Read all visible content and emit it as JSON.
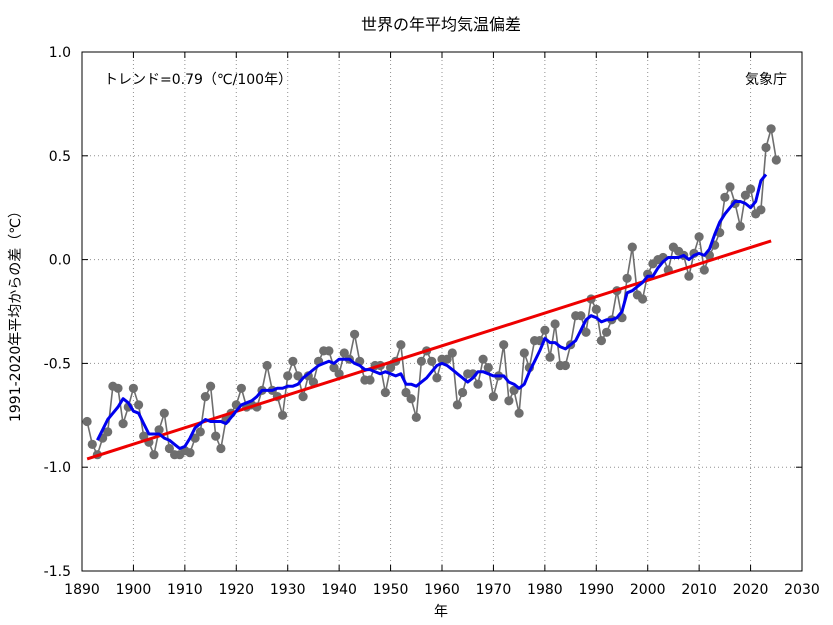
{
  "chart_data": {
    "type": "line",
    "title": "世界の年平均気温偏差",
    "xlabel": "年",
    "ylabel": "1991-2020年平均からの差（℃）",
    "trend_label": "トレンド=0.79（℃/100年）",
    "source_label": "気象庁",
    "xlim": [
      1890,
      2030
    ],
    "ylim": [
      -1.5,
      1.0
    ],
    "x_ticks": [
      1890,
      1900,
      1910,
      1920,
      1930,
      1940,
      1950,
      1960,
      1970,
      1980,
      1990,
      2000,
      2010,
      2020,
      2030
    ],
    "x_tick_labels": [
      "1890",
      "1900",
      "1910",
      "1920",
      "1930",
      "1940",
      "1950",
      "1960",
      "1970",
      "1980",
      "1990",
      "2000",
      "2010",
      "2020",
      "2030"
    ],
    "y_ticks": [
      -1.5,
      -1.0,
      -0.5,
      0.0,
      0.5,
      1.0
    ],
    "y_tick_labels": [
      "-1.5",
      "-1.0",
      "-0.5",
      "0.0",
      "0.5",
      "1.0"
    ],
    "grid": true,
    "colors": {
      "annual": "#6e6e6e",
      "moving_average": "#0000ee",
      "trend": "#ee0000"
    },
    "series": [
      {
        "key": "annual",
        "x": [
          1891,
          1892,
          1893,
          1894,
          1895,
          1896,
          1897,
          1898,
          1899,
          1900,
          1901,
          1902,
          1903,
          1904,
          1905,
          1906,
          1907,
          1908,
          1909,
          1910,
          1911,
          1912,
          1913,
          1914,
          1915,
          1916,
          1917,
          1918,
          1919,
          1920,
          1921,
          1922,
          1923,
          1924,
          1925,
          1926,
          1927,
          1928,
          1929,
          1930,
          1931,
          1932,
          1933,
          1934,
          1935,
          1936,
          1937,
          1938,
          1939,
          1940,
          1941,
          1942,
          1943,
          1944,
          1945,
          1946,
          1947,
          1948,
          1949,
          1950,
          1951,
          1952,
          1953,
          1954,
          1955,
          1956,
          1957,
          1958,
          1959,
          1960,
          1961,
          1962,
          1963,
          1964,
          1965,
          1966,
          1967,
          1968,
          1969,
          1970,
          1971,
          1972,
          1973,
          1974,
          1975,
          1976,
          1977,
          1978,
          1979,
          1980,
          1981,
          1982,
          1983,
          1984,
          1985,
          1986,
          1987,
          1988,
          1989,
          1990,
          1991,
          1992,
          1993,
          1994,
          1995,
          1996,
          1997,
          1998,
          1999,
          2000,
          2001,
          2002,
          2003,
          2004,
          2005,
          2006,
          2007,
          2008,
          2009,
          2010,
          2011,
          2012,
          2013,
          2014,
          2015,
          2016,
          2017,
          2018,
          2019,
          2020,
          2021,
          2022,
          2023,
          2024,
          2025
        ],
        "values": [
          -0.78,
          -0.89,
          -0.94,
          -0.86,
          -0.83,
          -0.61,
          -0.62,
          -0.79,
          -0.71,
          -0.62,
          -0.7,
          -0.85,
          -0.88,
          -0.94,
          -0.82,
          -0.74,
          -0.91,
          -0.94,
          -0.94,
          -0.92,
          -0.93,
          -0.86,
          -0.83,
          -0.66,
          -0.61,
          -0.85,
          -0.91,
          -0.77,
          -0.74,
          -0.7,
          -0.62,
          -0.71,
          -0.7,
          -0.71,
          -0.63,
          -0.51,
          -0.63,
          -0.66,
          -0.75,
          -0.56,
          -0.49,
          -0.56,
          -0.66,
          -0.56,
          -0.59,
          -0.49,
          -0.44,
          -0.44,
          -0.52,
          -0.55,
          -0.45,
          -0.48,
          -0.36,
          -0.49,
          -0.58,
          -0.58,
          -0.51,
          -0.51,
          -0.64,
          -0.52,
          -0.49,
          -0.41,
          -0.64,
          -0.67,
          -0.76,
          -0.49,
          -0.44,
          -0.49,
          -0.57,
          -0.48,
          -0.48,
          -0.45,
          -0.7,
          -0.64,
          -0.55,
          -0.55,
          -0.6,
          -0.48,
          -0.52,
          -0.66,
          -0.56,
          -0.41,
          -0.68,
          -0.63,
          -0.74,
          -0.45,
          -0.52,
          -0.39,
          -0.39,
          -0.34,
          -0.47,
          -0.31,
          -0.51,
          -0.51,
          -0.41,
          -0.27,
          -0.27,
          -0.35,
          -0.19,
          -0.24,
          -0.39,
          -0.35,
          -0.29,
          -0.15,
          -0.28,
          -0.09,
          0.06,
          -0.17,
          -0.19,
          -0.07,
          -0.02,
          0.0,
          0.01,
          -0.05,
          0.06,
          0.04,
          0.02,
          -0.08,
          0.03,
          0.11,
          -0.05,
          0.02,
          0.07,
          0.13,
          0.3,
          0.35,
          0.27,
          0.16,
          0.31,
          0.34,
          0.22,
          0.24,
          0.54,
          0.63,
          0.48
        ]
      },
      {
        "key": "moving_average",
        "x": [
          1893,
          1894,
          1895,
          1896,
          1897,
          1898,
          1899,
          1900,
          1901,
          1902,
          1903,
          1904,
          1905,
          1906,
          1907,
          1908,
          1909,
          1910,
          1911,
          1912,
          1913,
          1914,
          1915,
          1916,
          1917,
          1918,
          1919,
          1920,
          1921,
          1922,
          1923,
          1924,
          1925,
          1926,
          1927,
          1928,
          1929,
          1930,
          1931,
          1932,
          1933,
          1934,
          1935,
          1936,
          1937,
          1938,
          1939,
          1940,
          1941,
          1942,
          1943,
          1944,
          1945,
          1946,
          1947,
          1948,
          1949,
          1950,
          1951,
          1952,
          1953,
          1954,
          1955,
          1956,
          1957,
          1958,
          1959,
          1960,
          1961,
          1962,
          1963,
          1964,
          1965,
          1966,
          1967,
          1968,
          1969,
          1970,
          1971,
          1972,
          1973,
          1974,
          1975,
          1976,
          1977,
          1978,
          1979,
          1980,
          1981,
          1982,
          1983,
          1984,
          1985,
          1986,
          1987,
          1988,
          1989,
          1990,
          1991,
          1992,
          1993,
          1994,
          1995,
          1996,
          1997,
          1998,
          1999,
          2000,
          2001,
          2002,
          2003,
          2004,
          2005,
          2006,
          2007,
          2008,
          2009,
          2010,
          2011,
          2012,
          2013,
          2014,
          2015,
          2016,
          2017,
          2018,
          2019,
          2020,
          2021,
          2022,
          2023
        ],
        "values": [
          -0.87,
          -0.82,
          -0.77,
          -0.74,
          -0.71,
          -0.67,
          -0.69,
          -0.73,
          -0.74,
          -0.79,
          -0.84,
          -0.84,
          -0.84,
          -0.86,
          -0.87,
          -0.89,
          -0.91,
          -0.9,
          -0.86,
          -0.81,
          -0.79,
          -0.77,
          -0.78,
          -0.78,
          -0.78,
          -0.79,
          -0.76,
          -0.73,
          -0.7,
          -0.69,
          -0.68,
          -0.66,
          -0.63,
          -0.63,
          -0.63,
          -0.62,
          -0.62,
          -0.61,
          -0.61,
          -0.6,
          -0.57,
          -0.55,
          -0.53,
          -0.51,
          -0.5,
          -0.49,
          -0.5,
          -0.48,
          -0.48,
          -0.48,
          -0.5,
          -0.51,
          -0.53,
          -0.53,
          -0.54,
          -0.55,
          -0.54,
          -0.55,
          -0.56,
          -0.55,
          -0.6,
          -0.6,
          -0.61,
          -0.59,
          -0.57,
          -0.54,
          -0.51,
          -0.5,
          -0.51,
          -0.53,
          -0.55,
          -0.57,
          -0.59,
          -0.57,
          -0.54,
          -0.54,
          -0.55,
          -0.56,
          -0.56,
          -0.56,
          -0.59,
          -0.6,
          -0.62,
          -0.6,
          -0.54,
          -0.49,
          -0.44,
          -0.38,
          -0.4,
          -0.4,
          -0.42,
          -0.43,
          -0.41,
          -0.39,
          -0.34,
          -0.29,
          -0.27,
          -0.28,
          -0.3,
          -0.29,
          -0.29,
          -0.28,
          -0.25,
          -0.16,
          -0.15,
          -0.13,
          -0.11,
          -0.08,
          -0.08,
          -0.04,
          -0.01,
          0.01,
          0.01,
          0.01,
          0.02,
          0.0,
          0.02,
          0.03,
          0.02,
          0.05,
          0.12,
          0.18,
          0.22,
          0.25,
          0.28,
          0.28,
          0.27,
          0.25,
          0.28,
          0.38,
          0.41
        ]
      },
      {
        "key": "trend",
        "x": [
          1891,
          2024
        ],
        "values": [
          -0.96,
          0.09
        ]
      }
    ]
  }
}
